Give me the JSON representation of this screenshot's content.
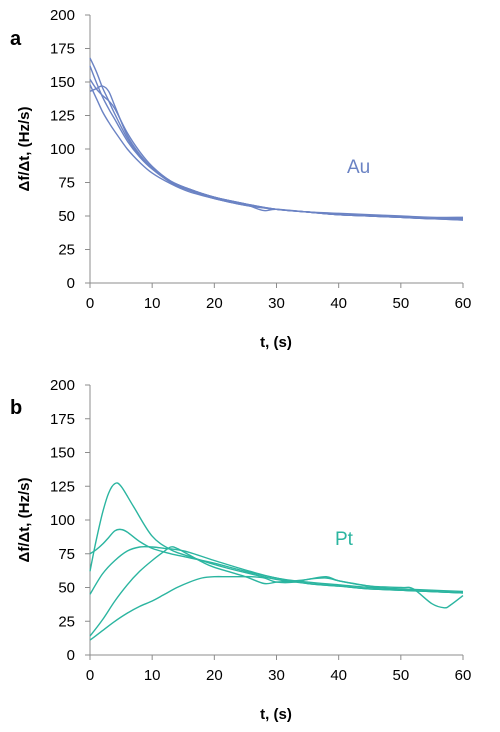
{
  "chart_data": [
    {
      "type": "line",
      "panel_label": "a",
      "xlabel": "t, (s)",
      "ylabel": "Δf/Δt, (Hz/s)",
      "xlim": [
        0,
        60
      ],
      "ylim": [
        0,
        200
      ],
      "xticks": [
        0,
        10,
        20,
        30,
        40,
        50,
        60
      ],
      "yticks": [
        0,
        25,
        50,
        75,
        100,
        125,
        150,
        175,
        200
      ],
      "grid": false,
      "series_label": "Au",
      "color": "#6b83c4",
      "series": [
        {
          "x": [
            0,
            1,
            2,
            3,
            4,
            6,
            8,
            10,
            13,
            16,
            20,
            25,
            30,
            35,
            40,
            45,
            50,
            55,
            60
          ],
          "y": [
            168,
            158,
            146,
            136,
            126,
            108,
            95,
            86,
            76,
            70,
            64,
            59,
            55,
            53,
            51,
            50,
            49,
            48,
            47
          ]
        },
        {
          "x": [
            0,
            1,
            2,
            3,
            4,
            6,
            8,
            10,
            13,
            16,
            20,
            25,
            30,
            35,
            40,
            45,
            50,
            55,
            60
          ],
          "y": [
            162,
            150,
            139,
            130,
            122,
            106,
            94,
            85,
            75,
            69,
            63,
            58,
            55,
            53,
            51,
            50,
            49,
            48,
            48
          ]
        },
        {
          "x": [
            0,
            1,
            2,
            3,
            4,
            6,
            8,
            10,
            13,
            16,
            20,
            25,
            26,
            28,
            30,
            35,
            40,
            45,
            50,
            55,
            60
          ],
          "y": [
            152,
            145,
            140,
            136,
            130,
            112,
            98,
            87,
            76,
            70,
            64,
            59,
            57,
            54,
            55,
            53,
            51,
            50,
            49,
            48,
            48
          ]
        },
        {
          "x": [
            0,
            1,
            2,
            3,
            4,
            6,
            8,
            10,
            13,
            16,
            20,
            25,
            30,
            35,
            40,
            45,
            50,
            55,
            60
          ],
          "y": [
            143,
            145,
            147,
            143,
            132,
            110,
            96,
            86,
            76,
            70,
            64,
            59,
            55,
            53,
            52,
            51,
            50,
            49,
            49
          ]
        },
        {
          "x": [
            0,
            1,
            2,
            3,
            4,
            6,
            8,
            10,
            13,
            16,
            20,
            25,
            30,
            35,
            40,
            45,
            50,
            55,
            60
          ],
          "y": [
            148,
            138,
            128,
            120,
            113,
            100,
            90,
            82,
            74,
            68,
            63,
            58,
            55,
            53,
            51,
            50,
            49,
            48,
            47
          ]
        }
      ]
    },
    {
      "type": "line",
      "panel_label": "b",
      "xlabel": "t, (s)",
      "ylabel": "Δf/Δt, (Hz/s)",
      "xlim": [
        0,
        60
      ],
      "ylim": [
        0,
        200
      ],
      "xticks": [
        0,
        10,
        20,
        30,
        40,
        50,
        60
      ],
      "yticks": [
        0,
        25,
        50,
        75,
        100,
        125,
        150,
        175,
        200
      ],
      "grid": false,
      "series_label": "Pt",
      "color": "#2bb5a0",
      "series": [
        {
          "x": [
            0,
            1,
            2,
            3,
            4,
            5,
            7,
            10,
            13,
            16,
            20,
            25,
            30,
            35,
            40,
            45,
            50,
            55,
            60
          ],
          "y": [
            62,
            85,
            105,
            120,
            127,
            125,
            110,
            88,
            78,
            73,
            67,
            61,
            56,
            53,
            51,
            49,
            48,
            47,
            46
          ]
        },
        {
          "x": [
            0,
            1,
            2,
            3,
            4,
            5,
            6,
            8,
            10,
            13,
            16,
            20,
            25,
            30,
            35,
            40,
            45,
            50,
            55,
            60
          ],
          "y": [
            75,
            78,
            82,
            87,
            92,
            93,
            91,
            84,
            79,
            75,
            72,
            68,
            62,
            57,
            53,
            51,
            49,
            48,
            47,
            46
          ]
        },
        {
          "x": [
            0,
            2,
            4,
            6,
            8,
            10,
            12,
            14,
            16,
            20,
            25,
            30,
            35,
            40,
            45,
            50,
            55,
            60
          ],
          "y": [
            45,
            60,
            70,
            77,
            80,
            80,
            79,
            78,
            76,
            70,
            63,
            57,
            54,
            52,
            50,
            49,
            48,
            47
          ]
        },
        {
          "x": [
            0,
            2,
            4,
            6,
            8,
            10,
            12,
            13,
            14,
            16,
            18,
            20,
            25,
            28,
            30,
            33,
            35,
            38,
            40,
            45,
            50,
            52,
            55,
            57,
            58,
            60
          ],
          "y": [
            14,
            26,
            40,
            52,
            62,
            70,
            77,
            80,
            79,
            74,
            69,
            65,
            58,
            53,
            54,
            55,
            56,
            58,
            55,
            51,
            50,
            49,
            38,
            35,
            37,
            44
          ]
        },
        {
          "x": [
            0,
            2,
            4,
            6,
            8,
            10,
            12,
            14,
            16,
            18,
            20,
            22,
            24,
            26,
            28,
            30,
            33,
            35,
            38,
            40,
            45,
            50,
            55,
            60
          ],
          "y": [
            11,
            18,
            25,
            31,
            36,
            40,
            45,
            50,
            54,
            57,
            58,
            58,
            58,
            58,
            57,
            54,
            54,
            56,
            57,
            55,
            51,
            48,
            47,
            46
          ]
        }
      ]
    }
  ]
}
